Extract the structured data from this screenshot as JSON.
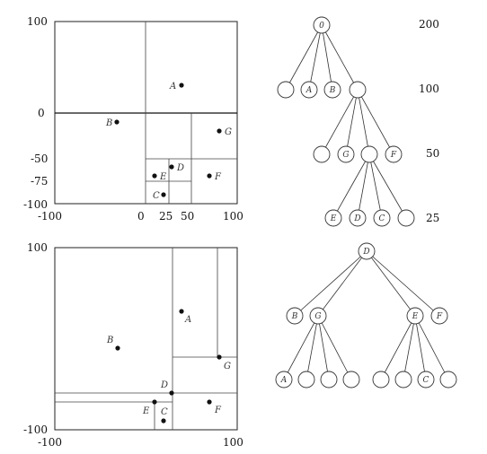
{
  "quadtree_plot": {
    "ticks_y": {
      "top": "100",
      "zero": "0",
      "m50": "-50",
      "m75": "-75",
      "bottom": "-100"
    },
    "ticks_x": {
      "left": "-100",
      "zero": "0",
      "p25": "25",
      "p50": "50",
      "right": "100"
    },
    "points": [
      {
        "label": "A"
      },
      {
        "label": "B"
      },
      {
        "label": "G"
      },
      {
        "label": "D"
      },
      {
        "label": "E"
      },
      {
        "label": "F"
      },
      {
        "label": "C"
      }
    ]
  },
  "quadtree": {
    "root": "0",
    "level1": [
      "",
      "A",
      "B",
      ""
    ],
    "level2": [
      "",
      "G",
      "",
      "F"
    ],
    "level3": [
      "E",
      "D",
      "C",
      ""
    ],
    "levels": [
      "200",
      "100",
      "50",
      "25"
    ]
  },
  "kdtree_plot": {
    "ticks_y": {
      "top": "100",
      "bottom": "-100"
    },
    "ticks_x": {
      "left": "-100",
      "right": "100"
    },
    "points": [
      {
        "label": "A"
      },
      {
        "label": "B"
      },
      {
        "label": "G"
      },
      {
        "label": "D"
      },
      {
        "label": "E"
      },
      {
        "label": "F"
      },
      {
        "label": "C"
      }
    ]
  },
  "kdtree": {
    "root": "D",
    "level1": [
      "B",
      "G",
      "E",
      "F"
    ],
    "level2": [
      "A",
      "",
      "",
      "",
      "",
      "",
      "C",
      ""
    ]
  }
}
